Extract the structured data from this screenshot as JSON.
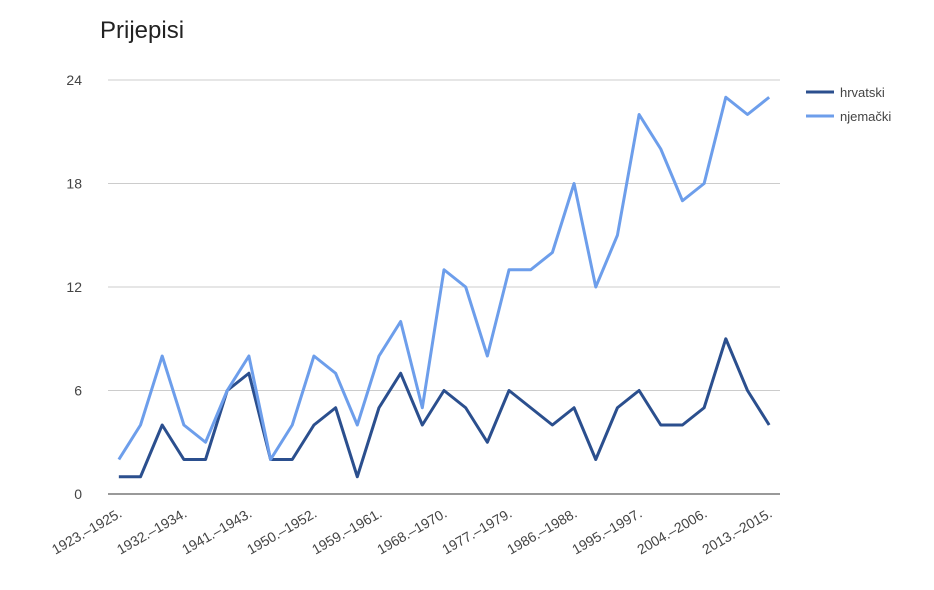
{
  "chart_data": {
    "type": "line",
    "title": "Prijepisi",
    "categories": [
      "1923.–1925.",
      null,
      null,
      "1932.–1934.",
      null,
      null,
      "1941.–1943.",
      null,
      null,
      "1950.–1952.",
      null,
      null,
      "1959.–1961.",
      null,
      null,
      "1968.–1970.",
      null,
      null,
      "1977.–1979.",
      null,
      null,
      "1986.–1988.",
      null,
      null,
      "1995.–1997.",
      null,
      null,
      "2004.–2006.",
      null,
      null,
      "2013.–2015."
    ],
    "series": [
      {
        "name": "hrvatski",
        "color": "#2b4f8e",
        "values": [
          1,
          1,
          4,
          2,
          2,
          6,
          7,
          2,
          2,
          4,
          5,
          1,
          5,
          7,
          4,
          6,
          5,
          3,
          6,
          5,
          4,
          5,
          2,
          5,
          6,
          4,
          4,
          5,
          9,
          6,
          4
        ]
      },
      {
        "name": "njemački",
        "color": "#6d9eeb",
        "values": [
          2,
          4,
          8,
          4,
          3,
          6,
          8,
          2,
          4,
          8,
          7,
          4,
          8,
          10,
          5,
          13,
          12,
          8,
          13,
          13,
          14,
          18,
          12,
          15,
          22,
          20,
          17,
          18,
          23,
          22,
          23
        ]
      }
    ],
    "ylim": [
      0,
      24
    ],
    "yticks": [
      0,
      6,
      12,
      18,
      24
    ],
    "grid": true,
    "legend": "right"
  }
}
